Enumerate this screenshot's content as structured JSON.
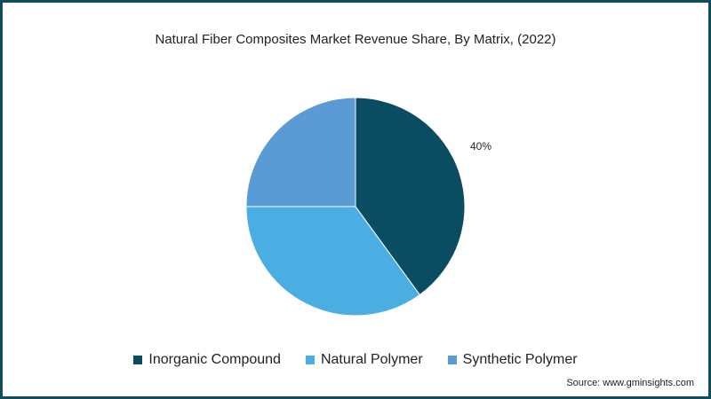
{
  "chart_data": {
    "type": "pie",
    "title": "Natural Fiber Composites Market Revenue Share, By Matrix, (2022)",
    "slices": [
      {
        "label": "Inorganic Compound",
        "value": 40,
        "color": "#0a4d63",
        "data_label": "40%"
      },
      {
        "label": "Natural Polymer",
        "value": 35,
        "color": "#4aaee3",
        "data_label": ""
      },
      {
        "label": "Synthetic Polymer",
        "value": 25,
        "color": "#5b9bd5",
        "data_label": ""
      }
    ],
    "legend_position": "bottom",
    "source": "Source: www.gminsights.com"
  }
}
